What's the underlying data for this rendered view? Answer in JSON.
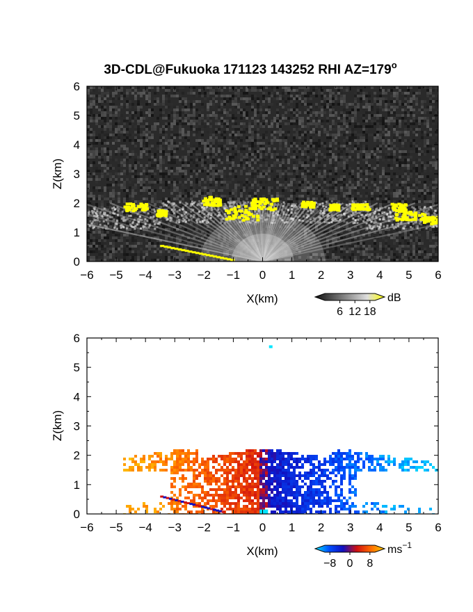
{
  "figure": {
    "title": "3D-CDL@Fukuoka 171123 143252 RHI AZ=179",
    "title_superscript": "o"
  },
  "chart_data": [
    {
      "type": "heatmap",
      "name": "backscatter",
      "xlabel": "X(km)",
      "ylabel": "Z(km)",
      "xlim": [
        -6,
        6
      ],
      "ylim": [
        0,
        6
      ],
      "xticks": [
        -6,
        -5,
        -4,
        -3,
        -2,
        -1,
        0,
        1,
        2,
        3,
        4,
        5,
        6
      ],
      "yticks": [
        0,
        1,
        2,
        3,
        4,
        5,
        6
      ],
      "colorbar": {
        "unit": "dB",
        "ticks": [
          6,
          12,
          18
        ],
        "range": [
          0,
          20
        ],
        "colors": [
          "#111111",
          "#555555",
          "#999999",
          "#dddddd",
          "#ffff00"
        ]
      },
      "background_color": "#2a2a2a",
      "high_color": "#ffff00"
    },
    {
      "type": "heatmap",
      "name": "doppler-velocity",
      "xlabel": "X(km)",
      "ylabel": "Z(km)",
      "xlim": [
        -6,
        6
      ],
      "ylim": [
        0,
        6
      ],
      "xticks": [
        -6,
        -5,
        -4,
        -3,
        -2,
        -1,
        0,
        1,
        2,
        3,
        4,
        5,
        6
      ],
      "yticks": [
        0,
        1,
        2,
        3,
        4,
        5,
        6
      ],
      "colorbar": {
        "unit": "ms",
        "unit_superscript": "−1",
        "ticks": [
          "−8",
          "0",
          "8"
        ],
        "tick_values": [
          -8,
          0,
          8
        ],
        "range": [
          -10,
          10
        ],
        "colors": [
          "#00e5ff",
          "#0050ff",
          "#1010c0",
          "#d01010",
          "#ff6a00",
          "#ffd000"
        ]
      },
      "background_color": "#ffffff"
    }
  ]
}
